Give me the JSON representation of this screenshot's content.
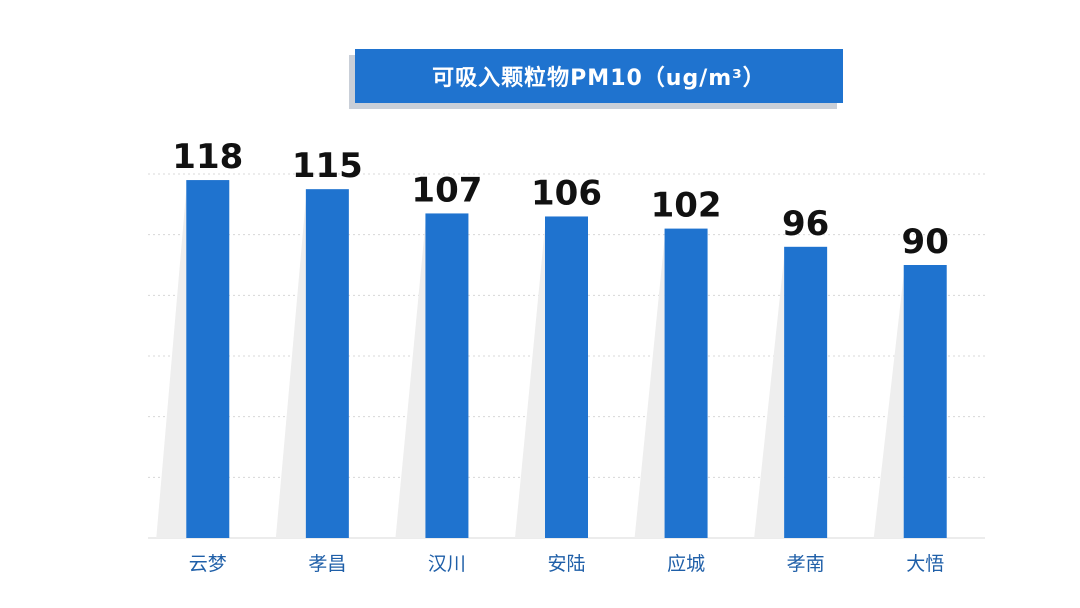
{
  "chart_data": {
    "type": "bar",
    "title": "可吸入颗粒物PM10（ug/m³）",
    "categories": [
      "云梦",
      "孝昌",
      "汉川",
      "安陆",
      "应城",
      "孝南",
      "大悟"
    ],
    "values": [
      118,
      115,
      107,
      106,
      102,
      96,
      90
    ],
    "ylim": [
      0,
      120
    ],
    "grid": true,
    "colors": {
      "bar": "#1f73cf",
      "grid": "#d8d8d8",
      "shadow": "#eeeeee"
    }
  }
}
